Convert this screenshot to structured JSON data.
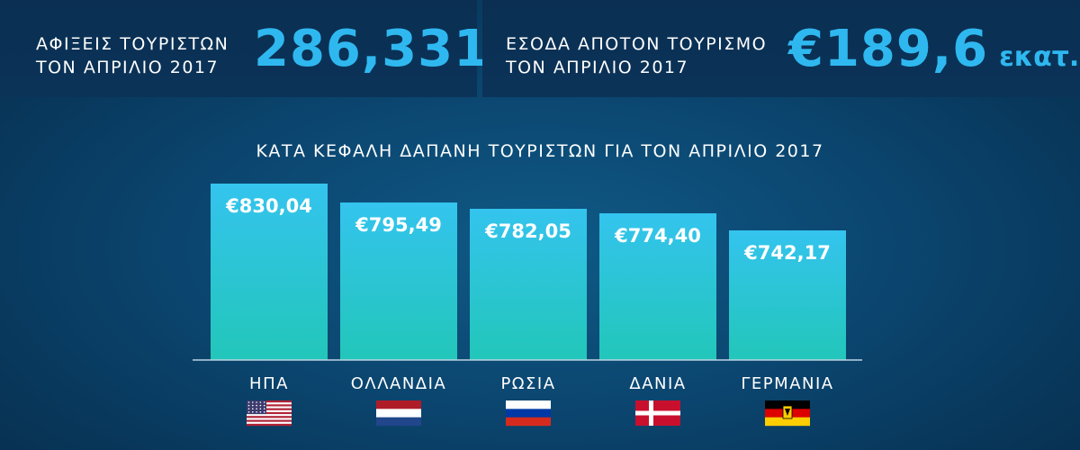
{
  "header": {
    "left": {
      "label": "ΑΦΙΞΕΙΣ ΤΟΥΡΙΣΤΩΝ\nΤΟΝ ΑΠΡΙΛΙΟ 2017",
      "value": "286,331"
    },
    "right": {
      "label": "ΕΣΟΔΑ ΑΠΟΤΟΝ ΤΟΥΡΙΣΜΟ\nΤΟΝ ΑΠΡΙΛΙΟ 2017",
      "value": "€189,6",
      "unit": "εκατ."
    }
  },
  "chart_data": {
    "type": "bar",
    "title": "ΚΑΤΑ ΚΕΦΑΛΗ ΔΑΠΑΝΗ ΤΟΥΡΙΣΤΩΝ ΓΙΑ ΤΟΝ ΑΠΡΙΛΙΟ 2017",
    "categories": [
      "ΗΠΑ",
      "ΟΛΛΑΝΔΙΑ",
      "ΡΩΣΙΑ",
      "ΔΑΝΙΑ",
      "ΓΕΡΜΑΝΙΑ"
    ],
    "values": [
      830.04,
      795.49,
      782.05,
      774.4,
      742.17
    ],
    "value_labels": [
      "€830,04",
      "€795,49",
      "€782,05",
      "€774,40",
      "€742,17"
    ],
    "flags": [
      "usa-flag-icon",
      "netherlands-flag-icon",
      "russia-flag-icon",
      "denmark-flag-icon",
      "germany-flag-icon"
    ],
    "colors": {
      "bar_top": "#34c4ee",
      "bar_bottom": "#22c6b9",
      "accent": "#2fb8f0"
    },
    "grid": false
  }
}
